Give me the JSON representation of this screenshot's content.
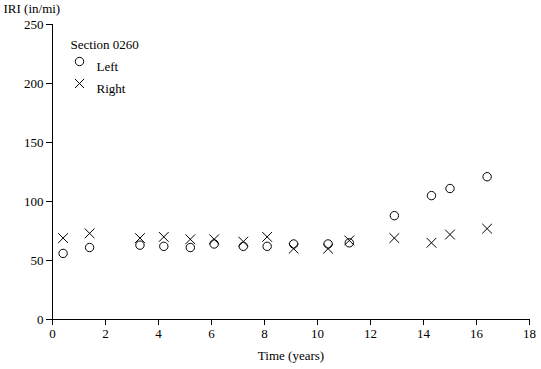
{
  "chart_data": {
    "type": "scatter",
    "title": "Section 0260",
    "x_label": "Time (years)",
    "y_label": "IRI (in/mi)",
    "xlim": [
      0,
      18
    ],
    "xticks": [
      0,
      2,
      4,
      6,
      8,
      10,
      12,
      14,
      16,
      18
    ],
    "ylim": [
      0,
      250
    ],
    "yticks": [
      0,
      50,
      100,
      150,
      200,
      250
    ],
    "grid": false,
    "legend": "top-left",
    "series": [
      {
        "name": "Left",
        "color": "#000000",
        "marker": "circle",
        "x": [
          0.4,
          1.4,
          3.3,
          4.2,
          5.2,
          6.1,
          7.2,
          8.1,
          9.1,
          10.4,
          11.2,
          12.9,
          14.3,
          15.0,
          16.4
        ],
        "values": [
          56,
          61,
          63,
          62,
          61,
          64,
          62,
          62,
          64,
          64,
          65,
          88,
          105,
          111,
          121
        ]
      },
      {
        "name": "Right",
        "color": "#000000",
        "marker": "times",
        "x": [
          0.4,
          1.4,
          3.3,
          4.2,
          5.2,
          6.1,
          7.2,
          8.1,
          9.1,
          10.4,
          11.2,
          12.9,
          14.3,
          15.0,
          16.4
        ],
        "values": [
          69,
          73,
          69,
          70,
          68,
          68,
          66,
          70,
          60,
          60,
          67,
          69,
          65,
          72,
          77
        ]
      }
    ]
  }
}
